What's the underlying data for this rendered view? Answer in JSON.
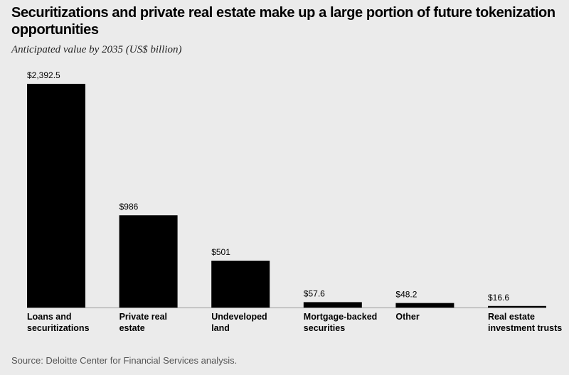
{
  "chart_data": {
    "type": "bar",
    "title": "Securitizations and private real estate make up a large portion of future tokenization opportunities",
    "subtitle": "Anticipated value by 2035 (US$ billion)",
    "categories": [
      "Loans and\nsecuritizations",
      "Private real\nestate",
      "Undeveloped\nland",
      "Mortgage-backed\nsecurities",
      "Other",
      "Real estate\ninvestment trusts"
    ],
    "values": [
      2392.5,
      986,
      501,
      57.6,
      48.2,
      16.6
    ],
    "value_labels": [
      "$2,392.5",
      "$986",
      "$501",
      "$57.6",
      "$48.2",
      "$16.6"
    ],
    "color": "#000000",
    "source": "Source: Deloitte Center for Financial Services analysis."
  }
}
